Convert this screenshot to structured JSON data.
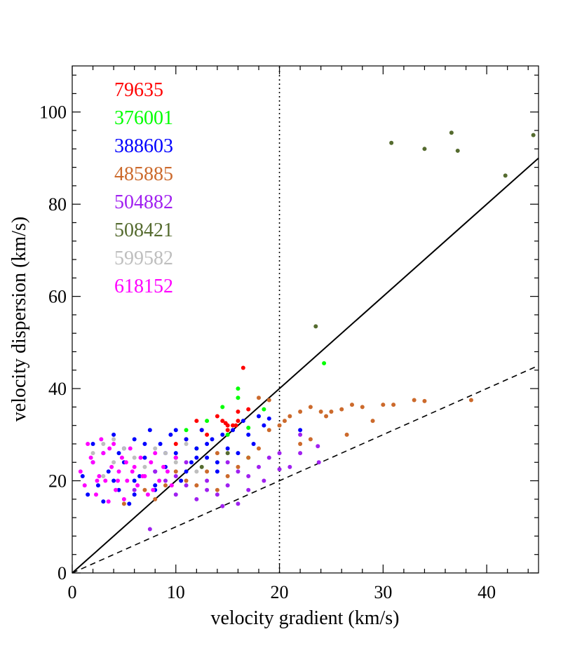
{
  "chart_data": {
    "type": "scatter",
    "xlabel": "velocity gradient (km/s)",
    "ylabel": "velocity dispersion (km/s)",
    "xlim": [
      0,
      45
    ],
    "ylim": [
      0,
      110
    ],
    "xticks": [
      0,
      10,
      20,
      30,
      40
    ],
    "yticks": [
      0,
      20,
      40,
      60,
      80,
      100
    ],
    "xminor": [
      2,
      4,
      6,
      8,
      12,
      14,
      16,
      18,
      22,
      24,
      26,
      28,
      32,
      34,
      36,
      38,
      42,
      44
    ],
    "yminor": [
      4,
      8,
      12,
      16,
      24,
      28,
      32,
      36,
      44,
      48,
      52,
      56,
      64,
      68,
      72,
      76,
      84,
      88,
      92,
      96,
      104,
      108
    ],
    "lines": [
      {
        "x": [
          0,
          45
        ],
        "y": [
          0,
          90
        ],
        "style": "solid"
      },
      {
        "x": [
          0,
          45
        ],
        "y": [
          0,
          45
        ],
        "style": "dashed"
      },
      {
        "x": [
          20,
          20
        ],
        "y": [
          0,
          110
        ],
        "style": "dotted"
      }
    ],
    "series": [
      {
        "name": "79635",
        "color": "#ff0000",
        "x": [
          12,
          14,
          15,
          16.5,
          15.5,
          13,
          11,
          14.5,
          15,
          16,
          17,
          10,
          12.5,
          16,
          14.8,
          15.8
        ],
        "values": [
          33,
          34,
          32,
          44.5,
          32,
          30,
          29,
          33,
          31,
          35,
          35.5,
          28,
          31,
          33,
          32.5,
          32
        ]
      },
      {
        "name": "376001",
        "color": "#00ff00",
        "x": [
          24.3,
          16,
          16,
          18.5,
          17,
          14.5,
          11,
          12,
          15,
          17,
          13
        ],
        "values": [
          45.5,
          40,
          38,
          35.5,
          31.5,
          36,
          31,
          27,
          30,
          25,
          33
        ]
      },
      {
        "name": "388603",
        "color": "#0000ff",
        "x": [
          1,
          1.5,
          2,
          2.5,
          3,
          3.5,
          4,
          4.5,
          5,
          5.5,
          6,
          6.5,
          7,
          7.5,
          8,
          8.5,
          9,
          9.5,
          10,
          10.5,
          11,
          11.5,
          12,
          12.5,
          13,
          13.5,
          14,
          14.5,
          15,
          15.5,
          16,
          16.5,
          17,
          17.5,
          18,
          18.5,
          19,
          22,
          2,
          3,
          4,
          5,
          6,
          7,
          8,
          9,
          10,
          11,
          12,
          13,
          14,
          6,
          8,
          4.5
        ],
        "values": [
          21,
          17,
          24,
          19,
          26,
          22,
          30,
          18,
          27,
          15,
          29,
          21,
          25,
          31,
          19,
          28,
          23,
          30,
          26,
          20,
          29,
          24,
          27,
          31,
          25,
          29,
          22,
          30,
          27,
          31,
          26,
          33,
          30,
          28,
          34,
          32,
          33.5,
          31,
          28,
          15.5,
          20,
          24,
          17,
          28,
          22,
          26,
          31,
          22,
          25,
          28,
          24,
          20,
          18,
          26
        ]
      },
      {
        "name": "485885",
        "color": "#cc6a2c",
        "x": [
          20,
          21,
          22,
          23,
          24,
          25,
          26,
          27,
          28,
          29,
          30,
          31,
          33,
          34,
          38.5,
          26.5,
          22,
          23,
          19,
          18,
          19,
          7,
          8,
          9,
          10,
          11,
          12,
          13,
          14,
          15,
          16,
          5,
          17,
          18,
          10,
          14,
          20.5,
          24.5
        ],
        "values": [
          32,
          34,
          35,
          36,
          35,
          35,
          35.5,
          36.5,
          36,
          33,
          36.5,
          36.5,
          37.5,
          37.3,
          37.5,
          30,
          28,
          29,
          31,
          38,
          37.5,
          18,
          16,
          19,
          22,
          20,
          19,
          22,
          18,
          21,
          23,
          15,
          25,
          27,
          25,
          26,
          33,
          34
        ]
      },
      {
        "name": "504882",
        "color": "#a020f0",
        "x": [
          7.5,
          14.5,
          10,
          11,
          12,
          13,
          15,
          16,
          17,
          18,
          20,
          21,
          22,
          23.8,
          23.7,
          22,
          16,
          13,
          9,
          6,
          8,
          19,
          20,
          15,
          17,
          11,
          10,
          18.5,
          14
        ],
        "values": [
          9.5,
          14.5,
          17,
          19,
          16,
          18,
          19,
          22,
          21,
          23,
          22.5,
          23,
          26,
          24,
          27.5,
          30,
          15,
          20,
          20,
          18,
          22,
          25,
          26,
          24,
          18,
          24,
          21,
          20,
          17
        ]
      },
      {
        "name": "508421",
        "color": "#556b2f",
        "x": [
          30.8,
          34,
          36.6,
          37.2,
          44.5,
          41.8,
          23.5,
          12.5,
          15,
          10
        ],
        "values": [
          93.3,
          92,
          95.5,
          91.6,
          95,
          86.2,
          53.5,
          23,
          26,
          25
        ]
      },
      {
        "name": "599582",
        "color": "#bebebe",
        "x": [
          2,
          3,
          4,
          5,
          6,
          7,
          8,
          9,
          10,
          11,
          12,
          3,
          4
        ],
        "values": [
          26,
          28,
          24,
          27,
          25,
          23,
          27,
          26,
          24,
          28,
          22,
          21,
          29
        ]
      },
      {
        "name": "618152",
        "color": "#ff00ff",
        "x": [
          0.8,
          1.2,
          1.5,
          2,
          2.3,
          2.6,
          3,
          3.2,
          3.5,
          3.8,
          4,
          4.2,
          4.5,
          4.8,
          5,
          5.3,
          5.6,
          6,
          6.3,
          6.6,
          7,
          7.3,
          7.6,
          8,
          8.4,
          8.8,
          9.2,
          9.6,
          10,
          2.8,
          3.6,
          4.4,
          5.2,
          6.8,
          7.8,
          1.8,
          2.4,
          5.8
        ],
        "values": [
          22,
          19,
          28,
          24,
          17,
          21,
          26,
          20,
          15.5,
          23,
          28,
          18,
          22,
          25,
          16,
          20,
          27,
          23,
          19,
          25,
          21,
          17,
          24,
          26,
          20,
          23,
          22,
          19,
          25,
          29,
          27,
          20,
          24,
          21,
          18,
          25,
          20,
          22
        ]
      }
    ]
  }
}
